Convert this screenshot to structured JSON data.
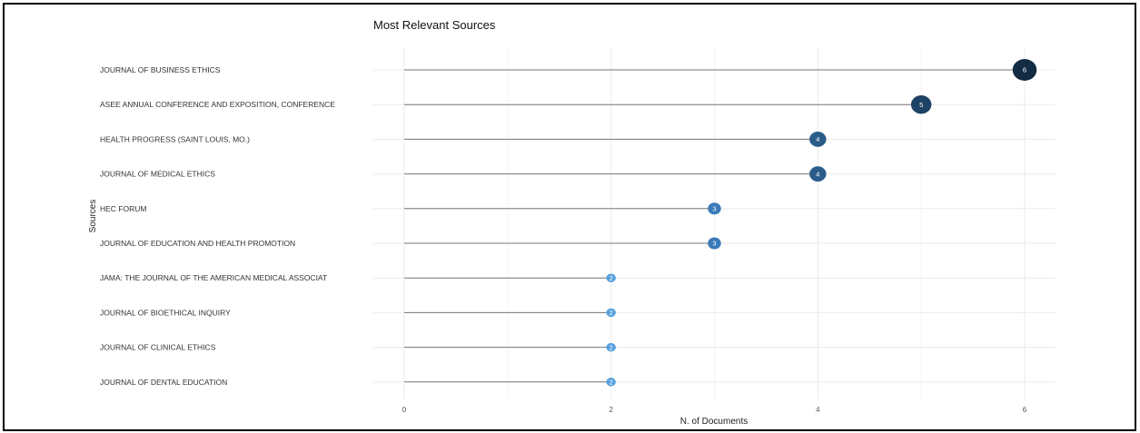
{
  "chart_data": {
    "type": "lollipop",
    "title": "Most Relevant Sources",
    "xlabel": "N. of Documents",
    "ylabel": "Sources",
    "xlim": [
      0,
      6
    ],
    "xticks": [
      0,
      2,
      4,
      6
    ],
    "grid": true,
    "categories": [
      "JOURNAL OF BUSINESS ETHICS",
      "ASEE ANNUAL CONFERENCE AND EXPOSITION, CONFERENCE",
      "HEALTH PROGRESS (SAINT LOUIS, MO.)",
      "JOURNAL OF MEDICAL ETHICS",
      "HEC FORUM",
      "JOURNAL OF EDUCATION AND HEALTH PROMOTION",
      "JAMA: THE JOURNAL OF THE AMERICAN MEDICAL ASSOCIAT",
      "JOURNAL OF BIOETHICAL INQUIRY",
      "JOURNAL OF CLINICAL ETHICS",
      "JOURNAL OF DENTAL EDUCATION"
    ],
    "values": [
      6,
      5,
      4,
      4,
      3,
      3,
      2,
      2,
      2,
      2
    ],
    "colors": {
      "6": "#132b43",
      "5": "#1e4266",
      "4": "#2a5c8a",
      "3": "#3a7ab8",
      "2": "#56a0dd"
    },
    "stem_color": "#777777",
    "grid_color": "#ebebeb",
    "label_color": "#ffffff"
  }
}
